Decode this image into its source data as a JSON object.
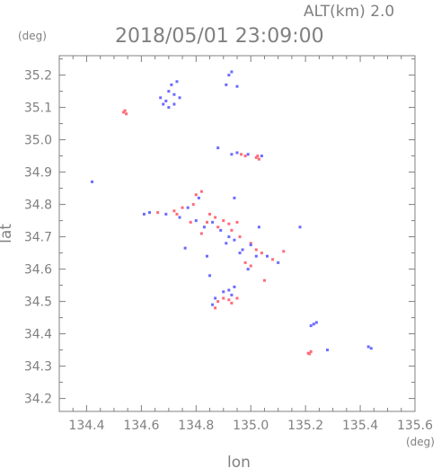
{
  "chart_data": {
    "type": "scatter",
    "title": "2018/05/01 23:09:00",
    "altitude_label": "ALT(km) 2.0",
    "xlabel": "lon",
    "ylabel": "lat",
    "x_unit": "(deg)",
    "y_unit": "(deg)",
    "xlim": [
      134.3,
      135.6
    ],
    "ylim": [
      34.16,
      35.26
    ],
    "x_ticks": [
      134.4,
      134.6,
      134.8,
      135.0,
      135.2,
      135.4,
      135.6
    ],
    "x_tick_labels": [
      "134.4",
      "134.6",
      "134.8",
      "135.0",
      "135.2",
      "135.4",
      "135.6"
    ],
    "y_ticks": [
      34.2,
      34.3,
      34.4,
      34.5,
      34.6,
      34.7,
      34.8,
      34.9,
      35.0,
      35.1,
      35.2
    ],
    "y_tick_labels": [
      "34.2",
      "34.3",
      "34.4",
      "34.5",
      "34.6",
      "34.7",
      "34.8",
      "34.9",
      "35.0",
      "35.1",
      "35.2"
    ],
    "grid": false,
    "colors": {
      "frame": "#808080",
      "text": "#808080",
      "positive": "#ff6b78",
      "negative": "#6b6bff"
    },
    "series": [
      {
        "color": "#ff6b78",
        "points": [
          [
            134.535,
            35.085
          ],
          [
            134.545,
            35.08
          ],
          [
            134.54,
            35.09
          ],
          [
            134.965,
            34.955
          ],
          [
            134.98,
            34.95
          ],
          [
            135.02,
            34.945
          ],
          [
            135.03,
            34.94
          ],
          [
            135.025,
            34.95
          ],
          [
            134.8,
            34.83
          ],
          [
            134.82,
            34.84
          ],
          [
            134.79,
            34.8
          ],
          [
            134.75,
            34.79
          ],
          [
            134.73,
            34.77
          ],
          [
            134.85,
            34.77
          ],
          [
            134.87,
            34.76
          ],
          [
            134.9,
            34.75
          ],
          [
            134.92,
            34.74
          ],
          [
            134.95,
            34.745
          ],
          [
            134.88,
            34.73
          ],
          [
            134.93,
            34.72
          ],
          [
            134.96,
            34.7
          ],
          [
            135.0,
            34.68
          ],
          [
            135.02,
            34.66
          ],
          [
            134.98,
            34.62
          ],
          [
            135.0,
            34.61
          ],
          [
            135.04,
            34.65
          ],
          [
            135.08,
            34.63
          ],
          [
            135.12,
            34.655
          ],
          [
            134.82,
            34.71
          ],
          [
            134.78,
            34.745
          ],
          [
            134.72,
            34.78
          ],
          [
            134.66,
            34.775
          ],
          [
            134.84,
            34.745
          ],
          [
            135.05,
            34.565
          ],
          [
            134.88,
            34.5
          ],
          [
            134.9,
            34.51
          ],
          [
            134.92,
            34.505
          ],
          [
            134.95,
            34.51
          ],
          [
            134.87,
            34.48
          ],
          [
            134.93,
            34.495
          ],
          [
            135.21,
            34.34
          ],
          [
            135.22,
            34.345
          ],
          [
            135.215,
            34.338
          ]
        ]
      },
      {
        "color": "#6b6bff",
        "points": [
          [
            134.67,
            35.13
          ],
          [
            134.69,
            35.12
          ],
          [
            134.7,
            35.15
          ],
          [
            134.72,
            35.14
          ],
          [
            134.74,
            35.13
          ],
          [
            134.71,
            35.17
          ],
          [
            134.73,
            35.18
          ],
          [
            134.68,
            35.11
          ],
          [
            134.7,
            35.1
          ],
          [
            134.72,
            35.11
          ],
          [
            134.92,
            35.2
          ],
          [
            134.93,
            35.21
          ],
          [
            134.91,
            35.17
          ],
          [
            134.95,
            35.165
          ],
          [
            134.42,
            34.87
          ],
          [
            134.88,
            34.975
          ],
          [
            134.93,
            34.955
          ],
          [
            134.95,
            34.96
          ],
          [
            134.99,
            34.955
          ],
          [
            135.04,
            34.95
          ],
          [
            134.94,
            34.82
          ],
          [
            134.81,
            34.82
          ],
          [
            134.77,
            34.79
          ],
          [
            134.74,
            34.76
          ],
          [
            134.69,
            34.77
          ],
          [
            134.61,
            34.77
          ],
          [
            134.63,
            34.775
          ],
          [
            134.8,
            34.75
          ],
          [
            134.83,
            34.73
          ],
          [
            134.86,
            34.745
          ],
          [
            134.89,
            34.72
          ],
          [
            134.92,
            34.7
          ],
          [
            134.91,
            34.68
          ],
          [
            134.94,
            34.69
          ],
          [
            134.97,
            34.66
          ],
          [
            135.0,
            34.675
          ],
          [
            135.02,
            34.64
          ],
          [
            135.06,
            34.64
          ],
          [
            135.1,
            34.62
          ],
          [
            134.99,
            34.6
          ],
          [
            134.96,
            34.65
          ],
          [
            135.03,
            34.73
          ],
          [
            135.18,
            34.73
          ],
          [
            134.76,
            34.665
          ],
          [
            134.84,
            34.64
          ],
          [
            134.9,
            34.53
          ],
          [
            134.92,
            34.535
          ],
          [
            134.87,
            34.51
          ],
          [
            134.86,
            34.49
          ],
          [
            134.94,
            34.545
          ],
          [
            134.93,
            34.52
          ],
          [
            135.23,
            34.43
          ],
          [
            135.24,
            34.435
          ],
          [
            135.22,
            34.425
          ],
          [
            135.28,
            34.35
          ],
          [
            135.43,
            34.36
          ],
          [
            135.44,
            34.355
          ],
          [
            134.85,
            34.58
          ]
        ]
      }
    ]
  }
}
